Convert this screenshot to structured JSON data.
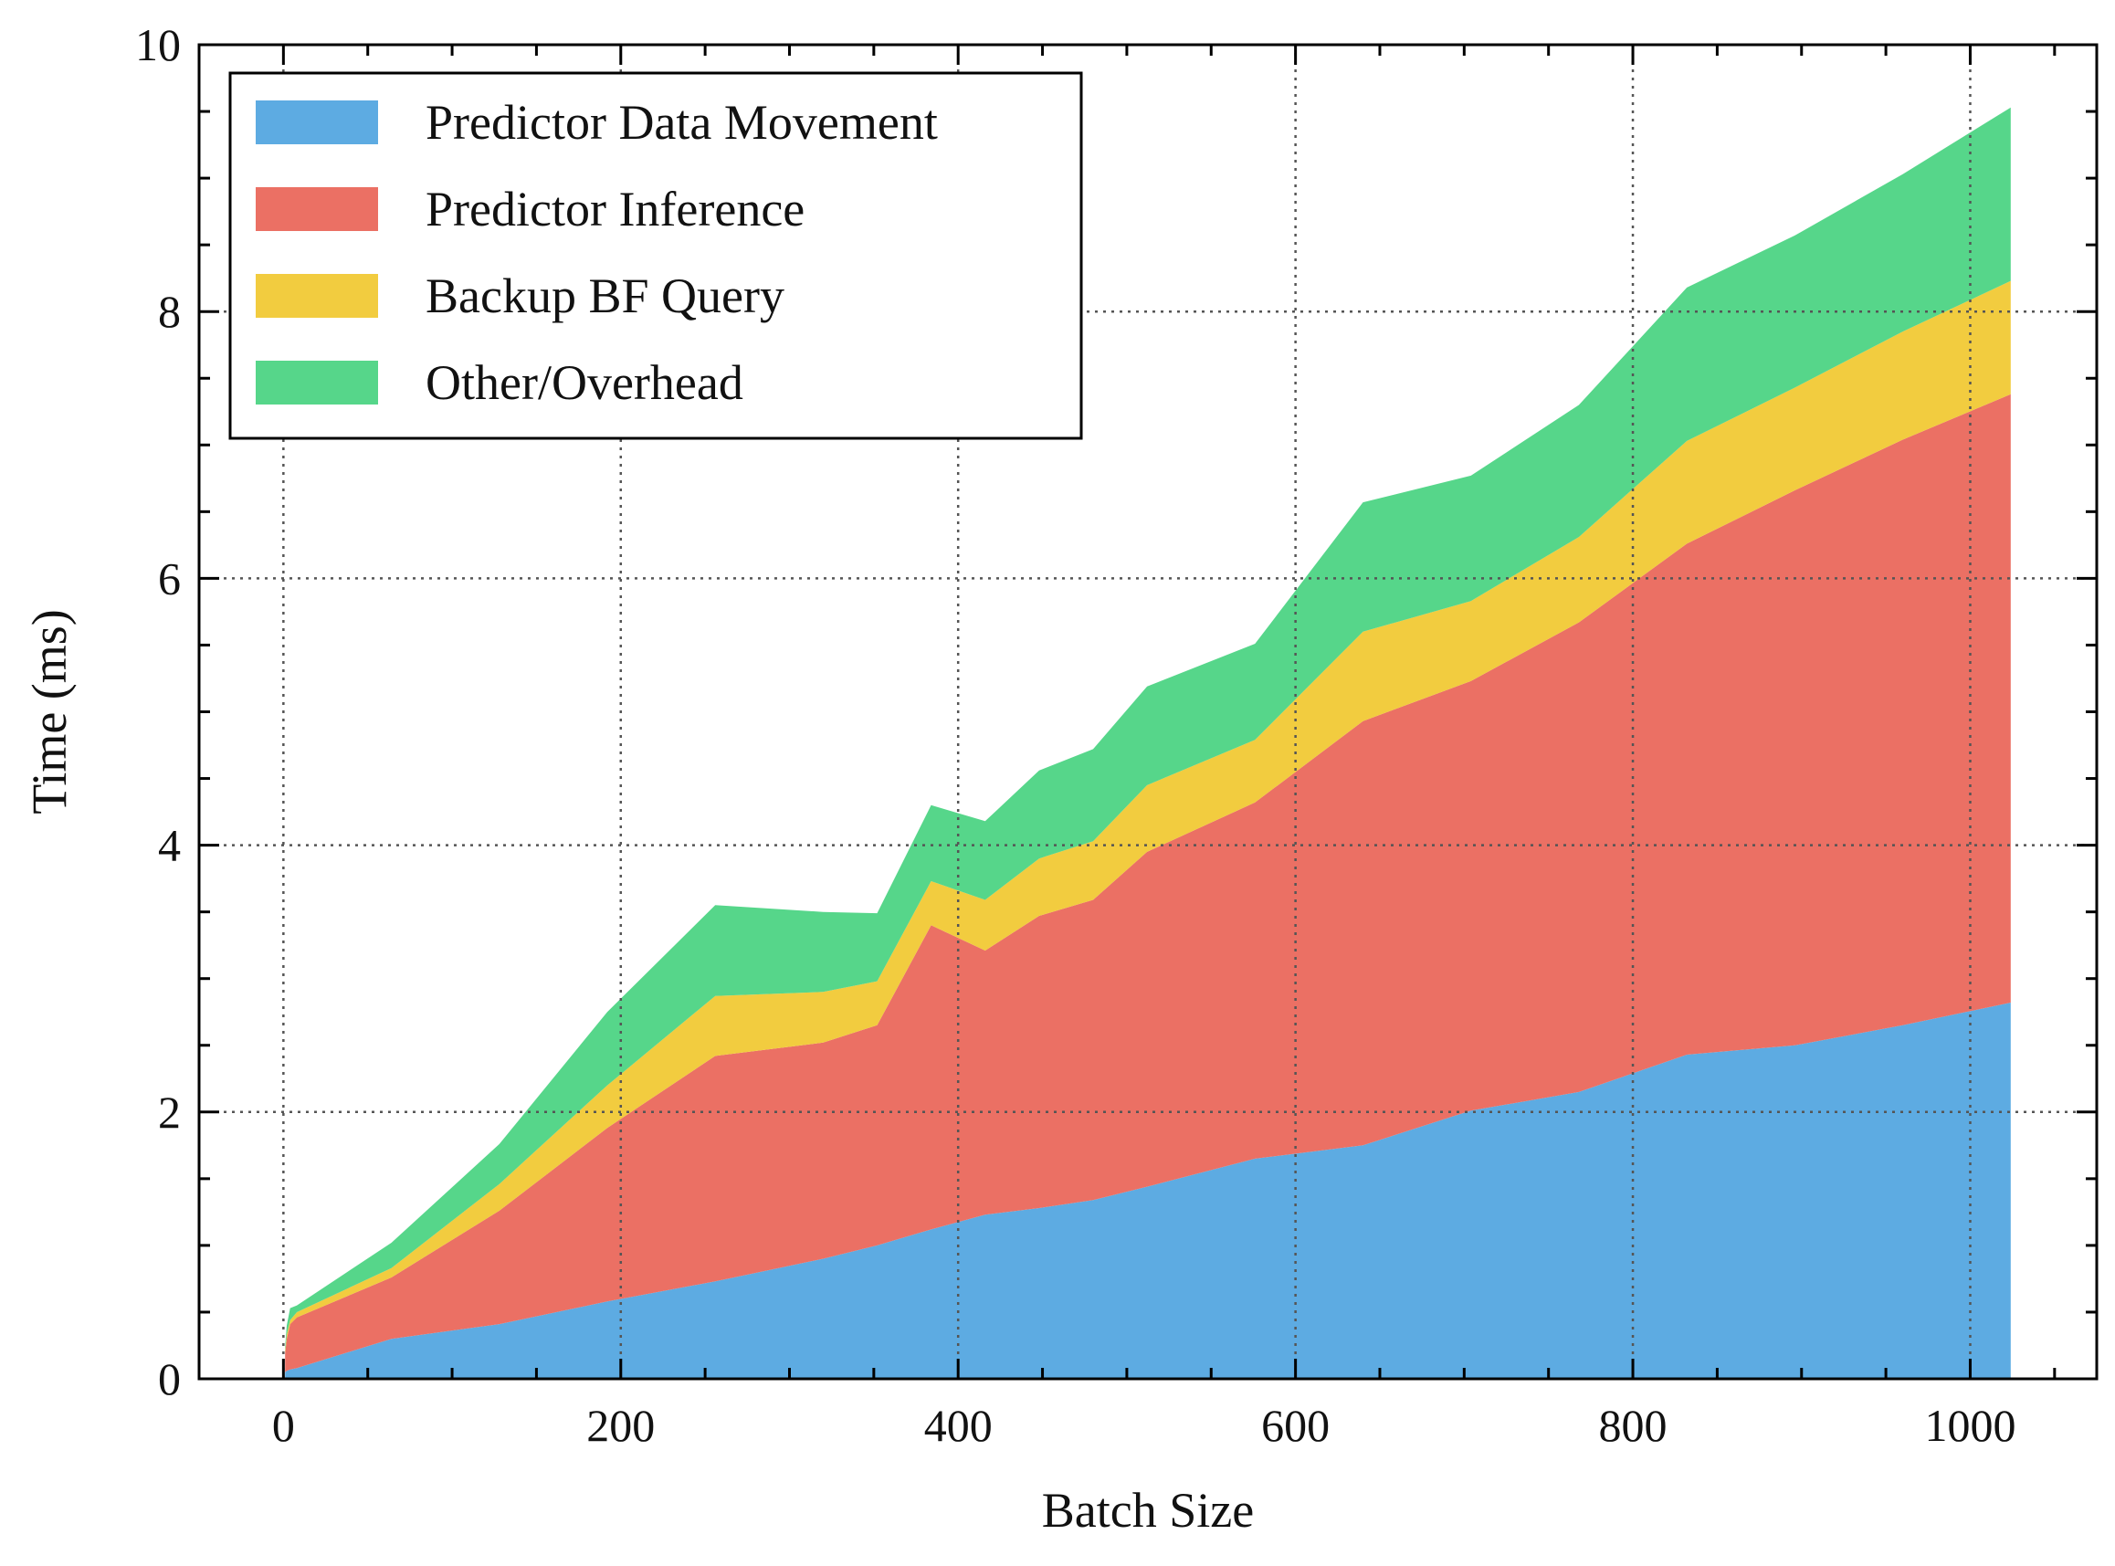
{
  "chart_data": {
    "type": "area",
    "stacked": true,
    "xlabel": "Batch Size",
    "ylabel": "Time (ms)",
    "xlim": [
      -50,
      1075
    ],
    "ylim": [
      0,
      10
    ],
    "xticks": [
      0,
      200,
      400,
      600,
      800,
      1000
    ],
    "yticks": [
      0,
      2,
      4,
      6,
      8,
      10
    ],
    "grid": true,
    "legend_position": "top-left",
    "x": [
      1,
      2,
      4,
      8,
      64,
      128,
      192,
      256,
      320,
      352,
      384,
      416,
      448,
      480,
      512,
      576,
      640,
      704,
      768,
      832,
      896,
      960,
      1024
    ],
    "series": [
      {
        "name": "Predictor Data Movement",
        "color": "#5DABE2",
        "values": [
          0.05,
          0.06,
          0.07,
          0.08,
          0.3,
          0.41,
          0.58,
          0.73,
          0.9,
          1.0,
          1.12,
          1.23,
          1.28,
          1.34,
          1.44,
          1.65,
          1.75,
          2.01,
          2.15,
          2.43,
          2.5,
          2.65,
          2.82
        ]
      },
      {
        "name": "Predictor Inference",
        "color": "#EB7064",
        "values": [
          0.14,
          0.24,
          0.34,
          0.38,
          0.46,
          0.85,
          1.3,
          1.69,
          1.62,
          1.65,
          2.28,
          1.98,
          2.19,
          2.25,
          2.51,
          2.67,
          3.18,
          3.22,
          3.52,
          3.83,
          4.16,
          4.39,
          4.56
        ]
      },
      {
        "name": "Backup BF Query",
        "color": "#F2CC3F",
        "values": [
          0.02,
          0.03,
          0.03,
          0.04,
          0.07,
          0.2,
          0.32,
          0.45,
          0.38,
          0.33,
          0.33,
          0.38,
          0.43,
          0.44,
          0.5,
          0.47,
          0.67,
          0.6,
          0.64,
          0.77,
          0.77,
          0.81,
          0.85
        ]
      },
      {
        "name": "Other/Overhead",
        "color": "#56D68A",
        "values": [
          0.03,
          0.07,
          0.09,
          0.05,
          0.19,
          0.3,
          0.55,
          0.68,
          0.6,
          0.51,
          0.57,
          0.59,
          0.66,
          0.69,
          0.74,
          0.72,
          0.97,
          0.94,
          0.99,
          1.15,
          1.14,
          1.18,
          1.3
        ]
      }
    ]
  }
}
